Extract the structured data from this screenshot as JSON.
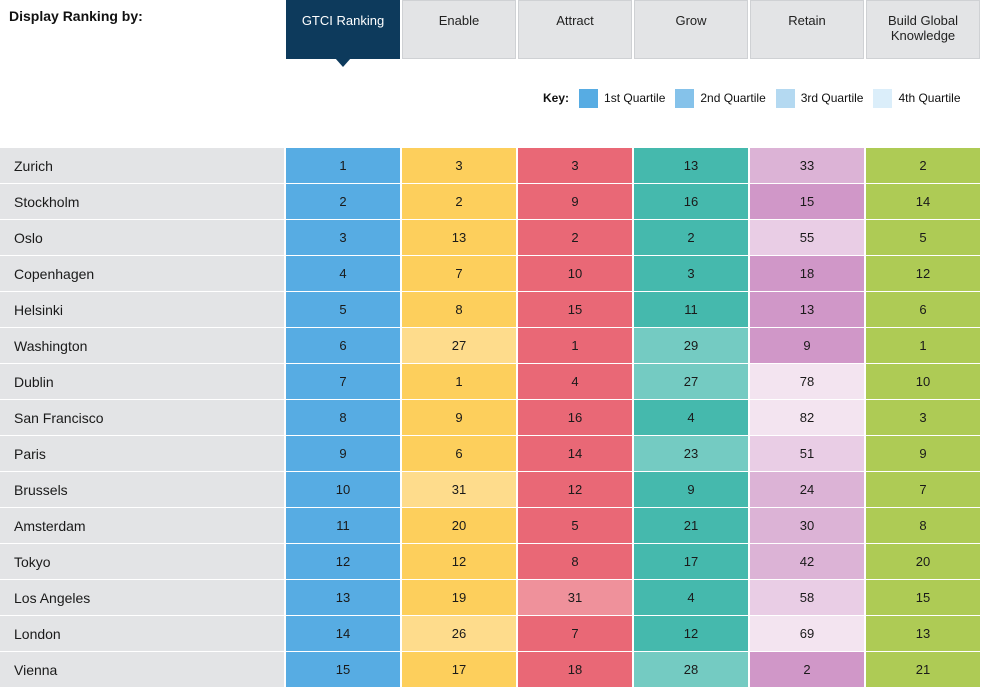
{
  "header": {
    "display_label": "Display Ranking by:"
  },
  "tabs": [
    {
      "label": "GTCI Ranking",
      "active": true
    },
    {
      "label": "Enable",
      "active": false
    },
    {
      "label": "Attract",
      "active": false
    },
    {
      "label": "Grow",
      "active": false
    },
    {
      "label": "Retain",
      "active": false
    },
    {
      "label": "Build Global\nKnowledge",
      "active": false
    }
  ],
  "key": {
    "title": "Key:",
    "items": [
      {
        "label": "1st Quartile",
        "color": "#57ace3"
      },
      {
        "label": "2nd Quartile",
        "color": "#85c2ea"
      },
      {
        "label": "3rd Quartile",
        "color": "#b4d9f1"
      },
      {
        "label": "4th Quartile",
        "color": "#dbeefa"
      }
    ]
  },
  "column_colors": {
    "gtci": [
      "#57ace3",
      "#85c2ea",
      "#b4d9f1",
      "#dbeefa"
    ],
    "enable": [
      "#fdcf5c",
      "#fedc8c",
      "#fee6ab",
      "#fff1d2"
    ],
    "attract": [
      "#e96876",
      "#ef919b",
      "#f4b4bb",
      "#f9d8dc"
    ],
    "grow": [
      "#45b9ad",
      "#74cbc2",
      "#a3ddd6",
      "#d1eeea"
    ],
    "retain": [
      "#d097c8",
      "#dcb3d6",
      "#e9cde5",
      "#f3e4f0"
    ],
    "build": [
      "#aecb55",
      "#c4da84",
      "#d8e7ab",
      "#ebf3d4"
    ]
  },
  "rows": [
    {
      "city": "Zurich",
      "gtci": "1",
      "enable": "3",
      "attract": "3",
      "grow": "13",
      "retain": "33",
      "build": "2",
      "q": [
        1,
        1,
        1,
        1,
        2,
        1
      ]
    },
    {
      "city": "Stockholm",
      "gtci": "2",
      "enable": "2",
      "attract": "9",
      "grow": "16",
      "retain": "15",
      "build": "14",
      "q": [
        1,
        1,
        1,
        1,
        1,
        1
      ]
    },
    {
      "city": "Oslo",
      "gtci": "3",
      "enable": "13",
      "attract": "2",
      "grow": "2",
      "retain": "55",
      "build": "5",
      "q": [
        1,
        1,
        1,
        1,
        3,
        1
      ]
    },
    {
      "city": "Copenhagen",
      "gtci": "4",
      "enable": "7",
      "attract": "10",
      "grow": "3",
      "retain": "18",
      "build": "12",
      "q": [
        1,
        1,
        1,
        1,
        1,
        1
      ]
    },
    {
      "city": "Helsinki",
      "gtci": "5",
      "enable": "8",
      "attract": "15",
      "grow": "11",
      "retain": "13",
      "build": "6",
      "q": [
        1,
        1,
        1,
        1,
        1,
        1
      ]
    },
    {
      "city": "Washington",
      "gtci": "6",
      "enable": "27",
      "attract": "1",
      "grow": "29",
      "retain": "9",
      "build": "1",
      "q": [
        1,
        2,
        1,
        2,
        1,
        1
      ]
    },
    {
      "city": "Dublin",
      "gtci": "7",
      "enable": "1",
      "attract": "4",
      "grow": "27",
      "retain": "78",
      "build": "10",
      "q": [
        1,
        1,
        1,
        2,
        4,
        1
      ]
    },
    {
      "city": "San Francisco",
      "gtci": "8",
      "enable": "9",
      "attract": "16",
      "grow": "4",
      "retain": "82",
      "build": "3",
      "q": [
        1,
        1,
        1,
        1,
        4,
        1
      ]
    },
    {
      "city": "Paris",
      "gtci": "9",
      "enable": "6",
      "attract": "14",
      "grow": "23",
      "retain": "51",
      "build": "9",
      "q": [
        1,
        1,
        1,
        2,
        3,
        1
      ]
    },
    {
      "city": "Brussels",
      "gtci": "10",
      "enable": "31",
      "attract": "12",
      "grow": "9",
      "retain": "24",
      "build": "7",
      "q": [
        1,
        2,
        1,
        1,
        2,
        1
      ]
    },
    {
      "city": "Amsterdam",
      "gtci": "11",
      "enable": "20",
      "attract": "5",
      "grow": "21",
      "retain": "30",
      "build": "8",
      "q": [
        1,
        1,
        1,
        1,
        2,
        1
      ]
    },
    {
      "city": "Tokyo",
      "gtci": "12",
      "enable": "12",
      "attract": "8",
      "grow": "17",
      "retain": "42",
      "build": "20",
      "q": [
        1,
        1,
        1,
        1,
        2,
        1
      ]
    },
    {
      "city": "Los Angeles",
      "gtci": "13",
      "enable": "19",
      "attract": "31",
      "grow": "4",
      "retain": "58",
      "build": "15",
      "q": [
        1,
        1,
        2,
        1,
        3,
        1
      ]
    },
    {
      "city": "London",
      "gtci": "14",
      "enable": "26",
      "attract": "7",
      "grow": "12",
      "retain": "69",
      "build": "13",
      "q": [
        1,
        2,
        1,
        1,
        4,
        1
      ]
    },
    {
      "city": "Vienna",
      "gtci": "15",
      "enable": "17",
      "attract": "18",
      "grow": "28",
      "retain": "2",
      "build": "21",
      "q": [
        1,
        1,
        1,
        2,
        1,
        1
      ]
    }
  ]
}
